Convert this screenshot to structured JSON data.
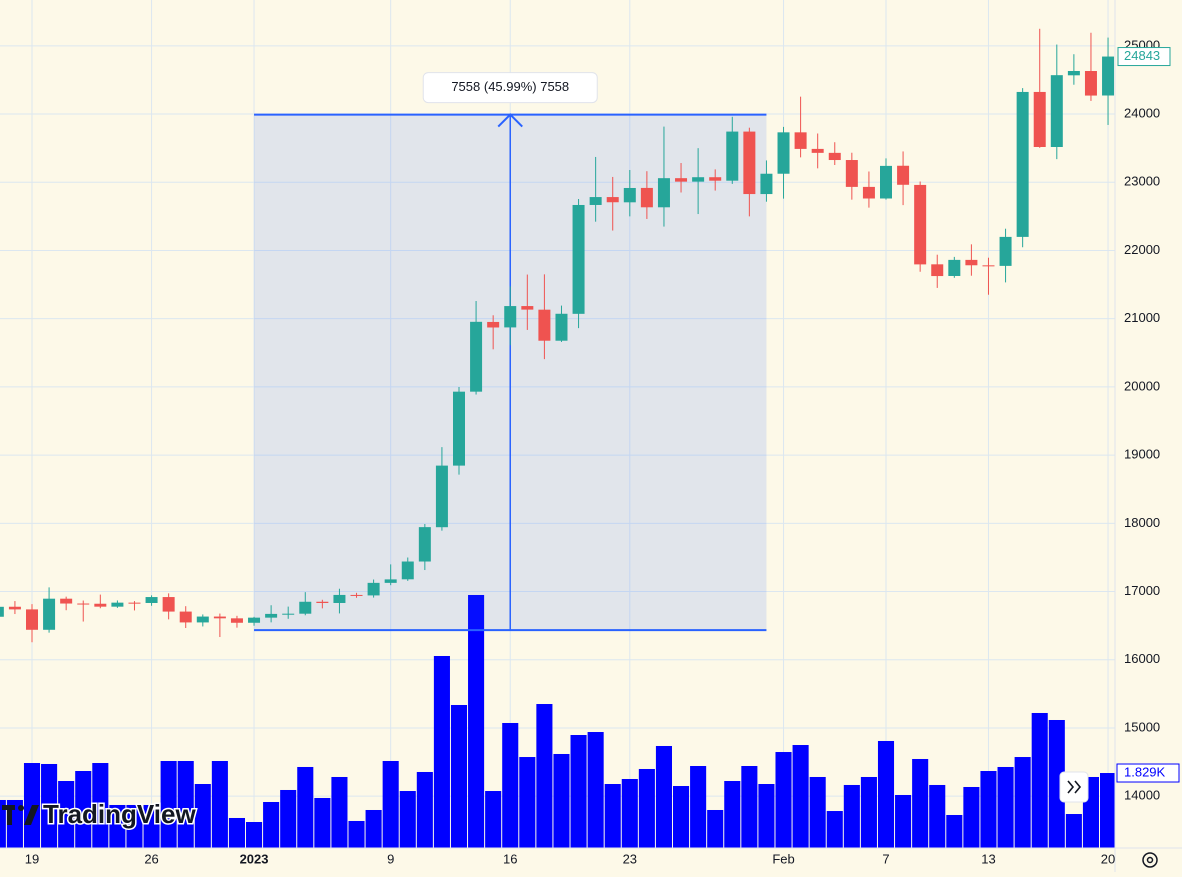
{
  "chart_data": {
    "type": "candlestick",
    "watermark": "TradingView",
    "categories": [
      null,
      null,
      "19",
      null,
      null,
      null,
      null,
      null,
      null,
      "26",
      null,
      null,
      null,
      null,
      null,
      "2023",
      null,
      null,
      null,
      null,
      null,
      null,
      null,
      "9",
      null,
      null,
      null,
      null,
      null,
      null,
      "16",
      null,
      null,
      null,
      null,
      null,
      null,
      "23",
      null,
      null,
      null,
      null,
      null,
      null,
      null,
      null,
      "Feb",
      null,
      null,
      null,
      null,
      null,
      "7",
      null,
      null,
      null,
      null,
      null,
      "13",
      null,
      null,
      null,
      null,
      null,
      null,
      "20"
    ],
    "ohlc": [
      [
        16630,
        16800,
        16580,
        16776
      ],
      [
        16777,
        16860,
        16670,
        16738
      ],
      [
        16738,
        16815,
        16256,
        16439
      ],
      [
        16439,
        17061,
        16397,
        16895
      ],
      [
        16895,
        16925,
        16726,
        16824
      ],
      [
        16824,
        16868,
        16560,
        16821
      ],
      [
        16821,
        16955,
        16755,
        16778
      ],
      [
        16778,
        16869,
        16760,
        16837
      ],
      [
        16837,
        16860,
        16723,
        16832
      ],
      [
        16832,
        16944,
        16791,
        16919
      ],
      [
        16919,
        16973,
        16592,
        16706
      ],
      [
        16706,
        16785,
        16465,
        16547
      ],
      [
        16547,
        16664,
        16488,
        16633
      ],
      [
        16633,
        16677,
        16333,
        16607
      ],
      [
        16607,
        16644,
        16470,
        16542
      ],
      [
        16542,
        16629,
        16499,
        16617
      ],
      [
        16617,
        16799,
        16548,
        16672
      ],
      [
        16672,
        16779,
        16600,
        16675
      ],
      [
        16675,
        16991,
        16652,
        16850
      ],
      [
        16850,
        16879,
        16753,
        16832
      ],
      [
        16832,
        17041,
        16679,
        16950
      ],
      [
        16950,
        16981,
        16908,
        16943
      ],
      [
        16943,
        17176,
        16911,
        17127
      ],
      [
        17127,
        17398,
        17093,
        17178
      ],
      [
        17179,
        17499,
        17156,
        17440
      ],
      [
        17440,
        17990,
        17315,
        17944
      ],
      [
        17943,
        19117,
        17892,
        18846
      ],
      [
        18846,
        19999,
        18714,
        19930
      ],
      [
        19930,
        21259,
        19888,
        20954
      ],
      [
        20952,
        21050,
        20551,
        20871
      ],
      [
        20872,
        21474,
        20611,
        21185
      ],
      [
        21185,
        21647,
        20835,
        21133
      ],
      [
        21132,
        21650,
        20407,
        20677
      ],
      [
        20677,
        21192,
        20659,
        21072
      ],
      [
        21071,
        22755,
        20861,
        22667
      ],
      [
        22667,
        23371,
        22422,
        22783
      ],
      [
        22783,
        23078,
        22292,
        22707
      ],
      [
        22706,
        23180,
        22500,
        22916
      ],
      [
        22917,
        23162,
        22462,
        22633
      ],
      [
        22633,
        23816,
        22350,
        23060
      ],
      [
        23060,
        23282,
        22850,
        23009
      ],
      [
        23009,
        23500,
        22534,
        23074
      ],
      [
        23074,
        23189,
        22878,
        23023
      ],
      [
        23023,
        23960,
        22976,
        23743
      ],
      [
        23743,
        23800,
        22500,
        22827
      ],
      [
        22827,
        23320,
        22715,
        23125
      ],
      [
        23125,
        23812,
        22760,
        23732
      ],
      [
        23732,
        24255,
        23365,
        23489
      ],
      [
        23489,
        23715,
        23204,
        23431
      ],
      [
        23431,
        23587,
        23253,
        23326
      ],
      [
        23326,
        23433,
        22745,
        22932
      ],
      [
        22932,
        23158,
        22628,
        22762
      ],
      [
        22762,
        23350,
        22745,
        23240
      ],
      [
        23242,
        23452,
        22665,
        22963
      ],
      [
        22961,
        23011,
        21688,
        21796
      ],
      [
        21797,
        21938,
        21451,
        21625
      ],
      [
        21626,
        21906,
        21599,
        21862
      ],
      [
        21862,
        22090,
        21630,
        21783
      ],
      [
        21782,
        21894,
        21351,
        21773
      ],
      [
        21774,
        22319,
        21532,
        22199
      ],
      [
        22199,
        24380,
        22048,
        24324
      ],
      [
        24324,
        25250,
        23505,
        23517
      ],
      [
        23517,
        25019,
        23339,
        24570
      ],
      [
        24568,
        24877,
        24430,
        24631
      ],
      [
        24631,
        25192,
        24192,
        24271
      ],
      [
        24272,
        25121,
        23840,
        24843
      ]
    ],
    "up_color": "#26a69a",
    "down_color": "#ef5350",
    "volume": [
      1171,
      1171,
      2073,
      2049,
      1634,
      1878,
      2073,
      1049,
      1049,
      1049,
      2122,
      2122,
      1561,
      2122,
      732,
      634,
      1122,
      1415,
      1976,
      1220,
      1732,
      659,
      927,
      2122,
      1390,
      1854,
      4683,
      3488,
      6171,
      1390,
      3049,
      2219,
      3512,
      2293,
      2756,
      2829,
      1561,
      1683,
      1927,
      2488,
      1512,
      2000,
      927,
      1634,
      2000,
      1561,
      2341,
      2512,
      1732,
      902,
      1537,
      1732,
      2610,
      1293,
      2171,
      1537,
      805,
      1488,
      1878,
      1976,
      2219,
      3293,
      3122,
      829,
      1732,
      1829
    ],
    "volume_color": "#0000ff",
    "vlim": [
      0,
      10000
    ],
    "volume_marker": {
      "value": 1829,
      "label": "1.829K"
    },
    "price_marker": 24843,
    "ylim": [
      13240,
      25672
    ],
    "yticks": [
      14000,
      15000,
      16000,
      17000,
      18000,
      19000,
      20000,
      21000,
      22000,
      23000,
      24000,
      25000
    ],
    "grid": true,
    "measure": {
      "label": "7558 (45.99%) 7558",
      "start": 16434,
      "end": 23992
    }
  }
}
